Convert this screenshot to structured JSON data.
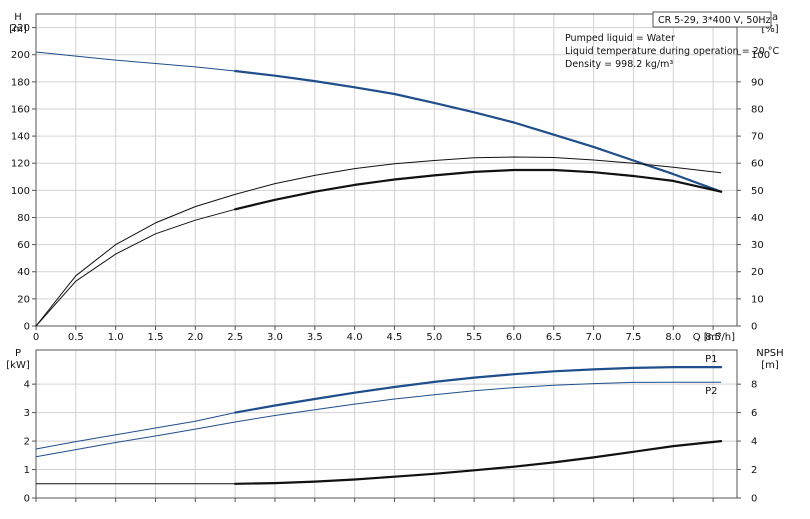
{
  "chart_data": [
    {
      "type": "line",
      "panel": "head-efficiency",
      "xlabel": "Q [m³/h]",
      "xlim": [
        0,
        8.8
      ],
      "xticks": [
        "0",
        "0.5",
        "1.0",
        "1.5",
        "2.0",
        "2.5",
        "3.0",
        "3.5",
        "4.0",
        "4.5",
        "5.0",
        "5.5",
        "6.0",
        "6.5",
        "7.0",
        "7.5",
        "8.0",
        "8.5"
      ],
      "y_left": {
        "label_top": "H",
        "label_unit": "[m]",
        "ylim": [
          0,
          230
        ],
        "ticks": [
          0,
          20,
          40,
          60,
          80,
          100,
          120,
          140,
          160,
          180,
          200,
          220
        ]
      },
      "y_right": {
        "label_top": "eta",
        "label_unit": "[%]",
        "ylim": [
          0,
          115
        ],
        "ticks": [
          0,
          10,
          20,
          30,
          40,
          50,
          60,
          70,
          80,
          90,
          100
        ]
      },
      "info_box": "CR 5-29, 3*400 V, 50Hz",
      "info_lines": [
        "Pumped liquid = Water",
        "Liquid temperature during operation = 20 °C",
        "Density = 998.2 kg/m³"
      ],
      "grid": true,
      "series": [
        {
          "axis": "left",
          "color": "#1f4e8c",
          "x": [
            0,
            0.5,
            1.0,
            1.5,
            2.0,
            2.5,
            3.0,
            3.5,
            4.0,
            4.5,
            5.0,
            5.5,
            6.0,
            6.5,
            7.0,
            7.5,
            8.0,
            8.6
          ],
          "y": [
            202,
            199,
            196,
            193.5,
            191,
            188,
            184.5,
            180.5,
            176,
            171,
            164.5,
            157.5,
            150,
            141,
            132,
            122,
            112,
            99
          ],
          "bold_from": 2.5
        },
        {
          "axis": "right",
          "color": "#111111",
          "x": [
            0,
            0.5,
            1.0,
            1.5,
            2.0,
            2.5,
            3.0,
            3.5,
            4.0,
            4.5,
            5.0,
            5.5,
            6.0,
            6.5,
            7.0,
            7.5,
            8.0,
            8.6
          ],
          "y": [
            0,
            18.5,
            30,
            38,
            44,
            48.5,
            52.5,
            55.5,
            58,
            59.8,
            61,
            62,
            62.3,
            62.1,
            61.2,
            60,
            58.5,
            56.5
          ]
        },
        {
          "axis": "right",
          "color": "#111111",
          "x": [
            0,
            0.5,
            1.0,
            1.5,
            2.0,
            2.5,
            3.0,
            3.5,
            4.0,
            4.5,
            5.0,
            5.5,
            6.0,
            6.5,
            7.0,
            7.5,
            8.0,
            8.6
          ],
          "y": [
            0,
            16.5,
            26.5,
            34,
            39,
            43,
            46.5,
            49.5,
            52,
            54,
            55.5,
            56.8,
            57.5,
            57.5,
            56.7,
            55.3,
            53.5,
            49.5
          ],
          "bold_from": 2.5
        }
      ]
    },
    {
      "type": "line",
      "panel": "power-npsh",
      "xlim": [
        0,
        8.8
      ],
      "y_left": {
        "label_top": "P",
        "label_unit": "[kW]",
        "ylim": [
          0,
          5.2
        ],
        "ticks": [
          0,
          1,
          2,
          3,
          4
        ]
      },
      "y_right": {
        "label_top": "NPSH",
        "label_unit": "[m]",
        "ylim": [
          0,
          10.4
        ],
        "ticks": [
          0,
          2,
          4,
          6,
          8
        ]
      },
      "grid": true,
      "series": [
        {
          "name": "P1",
          "axis": "left",
          "color": "#1f4e8c",
          "x": [
            0,
            0.5,
            1.0,
            1.5,
            2.0,
            2.5,
            3.0,
            3.5,
            4.0,
            4.5,
            5.0,
            5.5,
            6.0,
            6.5,
            7.0,
            7.5,
            8.0,
            8.6
          ],
          "y": [
            1.72,
            1.98,
            2.22,
            2.46,
            2.7,
            3.0,
            3.25,
            3.48,
            3.7,
            3.9,
            4.08,
            4.23,
            4.35,
            4.45,
            4.52,
            4.57,
            4.6,
            4.6
          ],
          "bold_from": 2.5
        },
        {
          "name": "P2",
          "axis": "left",
          "color": "#1f4e8c",
          "x": [
            0,
            0.5,
            1.0,
            1.5,
            2.0,
            2.5,
            3.0,
            3.5,
            4.0,
            4.5,
            5.0,
            5.5,
            6.0,
            6.5,
            7.0,
            7.5,
            8.0,
            8.6
          ],
          "y": [
            1.45,
            1.7,
            1.95,
            2.18,
            2.42,
            2.67,
            2.9,
            3.1,
            3.3,
            3.48,
            3.63,
            3.77,
            3.88,
            3.96,
            4.02,
            4.06,
            4.07,
            4.07
          ]
        },
        {
          "axis": "right",
          "color": "#111111",
          "x": [
            0,
            0.5,
            1.0,
            1.5,
            2.0,
            2.5,
            3.0,
            3.5,
            4.0,
            4.5,
            5.0,
            5.5,
            6.0,
            6.5,
            7.0,
            7.5,
            8.0,
            8.6
          ],
          "y": [
            1.0,
            1.0,
            1.0,
            1.0,
            1.0,
            1.0,
            1.05,
            1.15,
            1.3,
            1.5,
            1.7,
            1.95,
            2.2,
            2.5,
            2.85,
            3.25,
            3.65,
            4.0
          ],
          "bold_from": 2.5
        }
      ]
    }
  ]
}
